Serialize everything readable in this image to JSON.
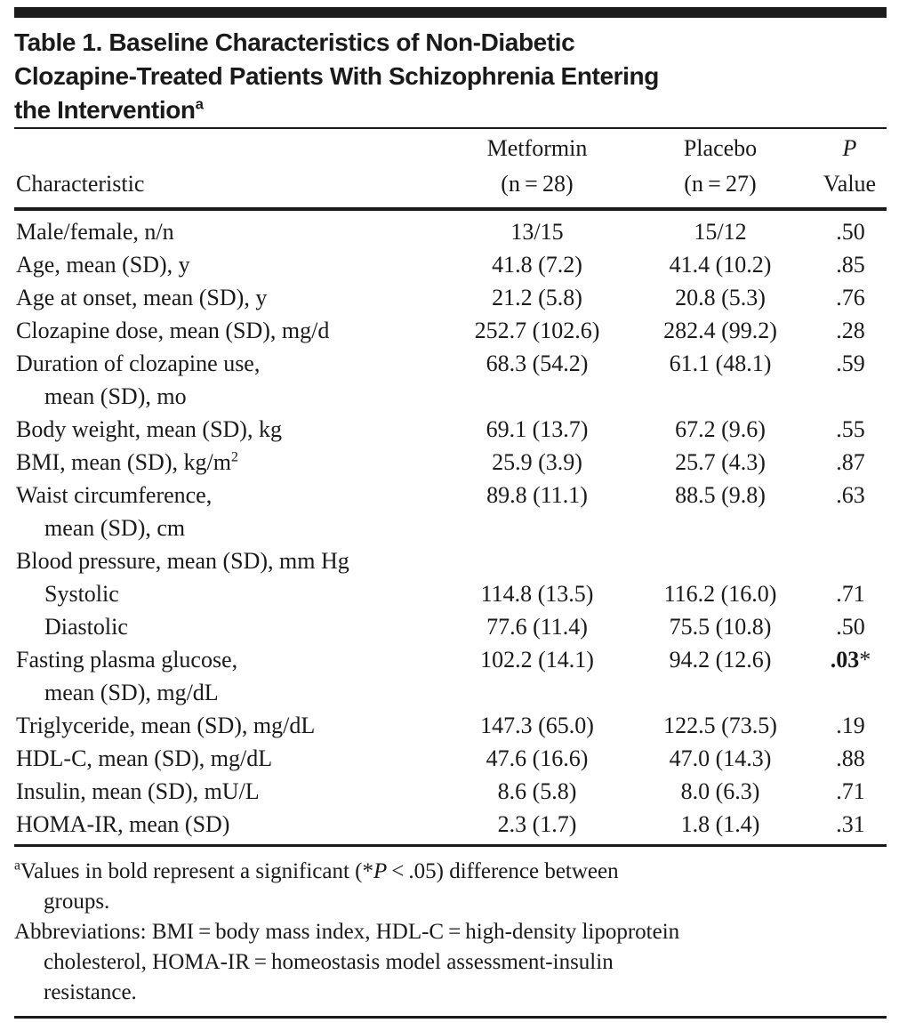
{
  "colors": {
    "text": "#1a1a1a",
    "rule": "#1a1a1a",
    "background": "#ffffff"
  },
  "document": {
    "title": {
      "lines": [
        "Table 1. Baseline Characteristics of Non-Diabetic",
        "Clozapine-Treated Patients With Schizophrenia Entering",
        "the Intervention"
      ],
      "superscript": "a"
    },
    "table": {
      "headers": {
        "characteristic": "Characteristic",
        "metformin_line1": "Metformin",
        "metformin_line2": "(n = 28)",
        "placebo_line1": "Placebo",
        "placebo_line2": "(n = 27)",
        "p_line1": "P",
        "p_line2": "Value"
      },
      "rows": [
        {
          "label": "Male/female, n/n",
          "metformin": "13/15",
          "placebo": "15/12",
          "p": ".50"
        },
        {
          "label": "Age, mean (SD), y",
          "metformin": "41.8 (7.2)",
          "placebo": "41.4 (10.2)",
          "p": ".85"
        },
        {
          "label": "Age at onset, mean (SD), y",
          "metformin": "21.2 (5.8)",
          "placebo": "20.8 (5.3)",
          "p": ".76"
        },
        {
          "label": "Clozapine dose, mean (SD), mg/d",
          "metformin": "252.7 (102.6)",
          "placebo": "282.4 (99.2)",
          "p": ".28"
        },
        {
          "label": "Duration of clozapine use,",
          "label2": "mean (SD), mo",
          "metformin": "68.3 (54.2)",
          "placebo": "61.1 (48.1)",
          "p": ".59"
        },
        {
          "label": "Body weight, mean (SD), kg",
          "metformin": "69.1 (13.7)",
          "placebo": "67.2 (9.6)",
          "p": ".55"
        },
        {
          "label": "BMI, mean (SD), kg/m",
          "label_sup": "2",
          "metformin": "25.9 (3.9)",
          "placebo": "25.7 (4.3)",
          "p": ".87"
        },
        {
          "label": "Waist circumference,",
          "label2": "mean (SD), cm",
          "metformin": "89.8 (11.1)",
          "placebo": "88.5 (9.8)",
          "p": ".63"
        },
        {
          "label": "Blood pressure, mean (SD), mm Hg",
          "metformin": "",
          "placebo": "",
          "p": ""
        },
        {
          "label": "Systolic",
          "indent": true,
          "metformin": "114.8 (13.5)",
          "placebo": "116.2 (16.0)",
          "p": ".71"
        },
        {
          "label": "Diastolic",
          "indent": true,
          "metformin": "77.6 (11.4)",
          "placebo": "75.5 (10.8)",
          "p": ".50"
        },
        {
          "label": "Fasting plasma glucose,",
          "label2": "mean (SD), mg/dL",
          "metformin": "102.2 (14.1)",
          "placebo": "94.2 (12.6)",
          "p": ".03",
          "p_bold": true,
          "p_suffix": "*"
        },
        {
          "label": "Triglyceride, mean (SD), mg/dL",
          "metformin": "147.3 (65.0)",
          "placebo": "122.5 (73.5)",
          "p": ".19"
        },
        {
          "label": "HDL-C, mean (SD), mg/dL",
          "metformin": "47.6 (16.6)",
          "placebo": "47.0 (14.3)",
          "p": ".88"
        },
        {
          "label": "Insulin, mean (SD), mU/L",
          "metformin": "8.6 (5.8)",
          "placebo": "8.0 (6.3)",
          "p": ".71"
        },
        {
          "label": "HOMA-IR, mean (SD)",
          "metformin": "2.3 (1.7)",
          "placebo": "1.8 (1.4)",
          "p": ".31"
        }
      ]
    },
    "footnotes": {
      "a": {
        "marker": "a",
        "before_italic": "Values in bold represent a significant (*",
        "italic": "P",
        "after_italic": " < .05) difference between",
        "line2": "groups."
      },
      "abbreviations": {
        "line1": "Abbreviations: BMI = body mass index, HDL-C = high-density lipoprotein",
        "line2": "cholesterol, HOMA-IR = homeostasis model assessment-insulin",
        "line3": "resistance."
      }
    }
  }
}
